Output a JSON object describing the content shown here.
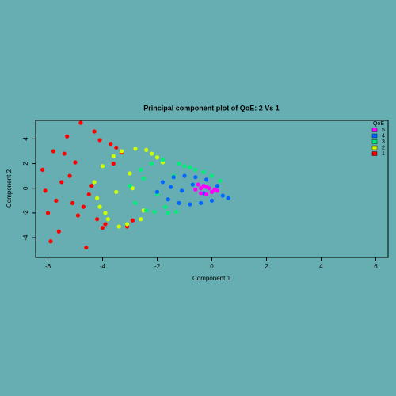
{
  "chart_data": {
    "type": "scatter",
    "title": "Principal component plot of QoE: 2 Vs 1",
    "x_label": "Component 1",
    "y_label": "Component 2",
    "legend_title": "QoE",
    "legend_position": "top-right",
    "xlim": [
      -6.45,
      6.45
    ],
    "ylim": [
      -5.6,
      5.5
    ],
    "xticks": [
      -6,
      -4,
      -2,
      0,
      2,
      4,
      6
    ],
    "yticks": [
      -4,
      -2,
      0,
      2,
      4
    ],
    "series": [
      {
        "name": "1",
        "color": "#ff0000",
        "x": [
          -6.2,
          -6.0,
          -5.8,
          -5.6,
          -5.5,
          -5.3,
          -5.1,
          -5.0,
          -4.8,
          -4.6,
          -4.5,
          -4.3,
          -4.1,
          -3.9,
          -3.7,
          -3.5,
          -3.3,
          -3.1,
          -2.9,
          -6.1,
          -5.7,
          -5.2,
          -4.9,
          -4.4,
          -4.0,
          -3.6,
          -5.9,
          -5.4,
          -4.7,
          -4.2
        ],
        "y": [
          1.5,
          -2.0,
          3.0,
          -3.5,
          0.5,
          4.2,
          -1.2,
          2.1,
          5.3,
          -4.8,
          -0.5,
          4.6,
          3.9,
          -2.9,
          3.6,
          3.3,
          2.9,
          -3.1,
          -2.6,
          -0.2,
          -1.0,
          1.0,
          -2.2,
          0.2,
          -3.2,
          2.0,
          -4.3,
          2.8,
          -1.5,
          -2.5
        ]
      },
      {
        "name": "2",
        "color": "#ccff00",
        "x": [
          -4.3,
          -4.1,
          -4.0,
          -3.8,
          -3.6,
          -3.5,
          -3.3,
          -3.1,
          -3.0,
          -2.8,
          -2.6,
          -2.4,
          -2.2,
          -2.0,
          -1.8,
          -4.2,
          -3.9,
          -3.4,
          -2.9,
          -2.5
        ],
        "y": [
          0.5,
          -1.5,
          1.8,
          -2.5,
          2.6,
          -0.3,
          3.0,
          -2.9,
          1.2,
          3.2,
          -2.5,
          3.1,
          2.8,
          2.5,
          2.1,
          -0.8,
          -2.0,
          -3.1,
          0.0,
          -1.8
        ]
      },
      {
        "name": "3",
        "color": "#00ee77",
        "x": [
          -3.0,
          -2.8,
          -2.6,
          -2.4,
          -2.2,
          -2.0,
          -1.8,
          -1.6,
          -1.4,
          -1.2,
          -1.0,
          -0.8,
          -0.6,
          -0.3,
          0.0,
          0.3,
          -2.5,
          -2.1,
          -1.7,
          -1.3
        ],
        "y": [
          0.2,
          -1.2,
          1.5,
          -1.8,
          2.0,
          -0.5,
          2.3,
          -2.0,
          1.0,
          2.0,
          1.8,
          1.7,
          1.5,
          1.3,
          1.0,
          0.6,
          0.8,
          -1.9,
          -1.5,
          -1.9
        ]
      },
      {
        "name": "4",
        "color": "#0066ff",
        "x": [
          -2.0,
          -1.8,
          -1.6,
          -1.4,
          -1.2,
          -1.0,
          -0.8,
          -0.6,
          -0.4,
          -0.2,
          0.0,
          0.2,
          0.4,
          0.6,
          -1.5,
          -1.1,
          -0.7,
          -0.3
        ],
        "y": [
          -0.3,
          0.5,
          -0.9,
          0.9,
          -1.2,
          1.0,
          -1.3,
          0.9,
          -1.2,
          0.7,
          -1.0,
          0.2,
          -0.6,
          -0.8,
          0.1,
          -0.2,
          0.3,
          -0.4
        ]
      },
      {
        "name": "5",
        "color": "#ff00ff",
        "x": [
          -0.6,
          -0.5,
          -0.4,
          -0.3,
          -0.2,
          -0.1,
          0.0,
          0.1,
          0.2,
          -0.4,
          -0.2
        ],
        "y": [
          -0.1,
          0.3,
          -0.4,
          0.2,
          -0.5,
          0.0,
          -0.3,
          -0.1,
          -0.2,
          0.0,
          0.1
        ]
      }
    ]
  }
}
